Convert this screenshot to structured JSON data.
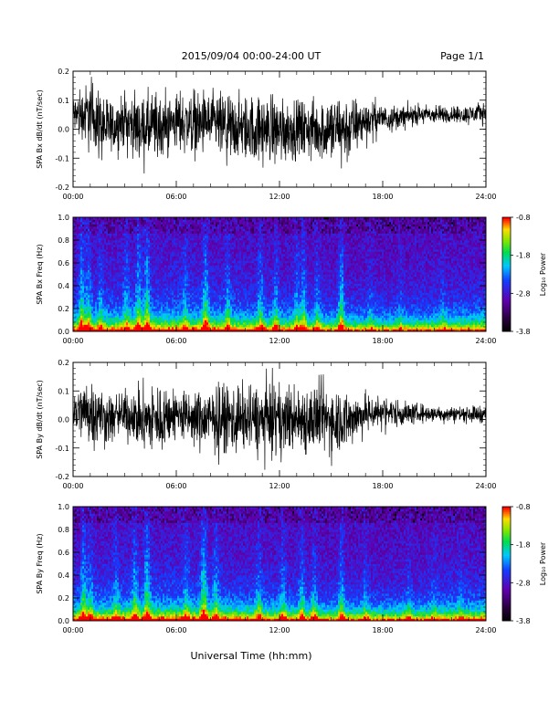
{
  "header": {
    "title": "2015/09/04  00:00-24:00 UT",
    "page": "Page 1/1"
  },
  "xaxis": {
    "label": "Universal Time (hh:mm)",
    "ticks": [
      "00:00",
      "06:00",
      "12:00",
      "18:00",
      "24:00"
    ]
  },
  "chart_data": [
    {
      "type": "line",
      "title": "",
      "xlabel": "",
      "ylabel": "SPA Bx dB/dt (nT/sec)",
      "xlim": [
        0,
        24
      ],
      "ylim": [
        -0.2,
        0.2
      ],
      "x_unit": "hours UT",
      "yticks": [
        "-0.2",
        "-0.1",
        "0.0",
        "0.1",
        "0.2"
      ],
      "color": "#000000",
      "envelope": {
        "x": [
          0,
          1,
          2,
          3,
          4,
          5,
          6,
          7,
          8,
          9,
          10,
          11,
          12,
          13,
          14,
          15,
          16,
          17,
          18,
          19,
          20,
          21,
          22,
          23,
          24
        ],
        "amplitude": [
          0.12,
          0.22,
          0.18,
          0.16,
          0.2,
          0.22,
          0.16,
          0.2,
          0.18,
          0.22,
          0.2,
          0.22,
          0.2,
          0.18,
          0.18,
          0.22,
          0.2,
          0.12,
          0.09,
          0.07,
          0.06,
          0.06,
          0.05,
          0.06,
          0.07
        ],
        "offset": [
          0.05,
          0.05,
          0.0,
          0.03,
          0.0,
          0.0,
          0.03,
          0.02,
          0.02,
          0.0,
          0.0,
          0.0,
          0.0,
          0.0,
          0.0,
          0.0,
          0.0,
          0.03,
          0.04,
          0.04,
          0.05,
          0.05,
          0.05,
          0.05,
          0.06
        ]
      }
    },
    {
      "type": "heatmap",
      "title": "",
      "xlabel": "",
      "ylabel": "SPA Bx Freq (Hz)",
      "xlim": [
        0,
        24
      ],
      "ylim": [
        0,
        1.0
      ],
      "yticks": [
        "0.0",
        "0.2",
        "0.4",
        "0.6",
        "0.8",
        "1.0"
      ],
      "colorbar": {
        "label": "Log₁₀ Power",
        "range": [
          -3.8,
          -0.8
        ],
        "ticks": [
          "-0.8",
          "-1.8",
          "-2.8",
          "-3.8"
        ]
      },
      "bursts": [
        {
          "t": 0.5,
          "a": 0.9
        },
        {
          "t": 0.9,
          "a": 0.7
        },
        {
          "t": 1.6,
          "a": 0.5
        },
        {
          "t": 3.1,
          "a": 0.6
        },
        {
          "t": 3.8,
          "a": 0.8
        },
        {
          "t": 4.3,
          "a": 0.9
        },
        {
          "t": 6.5,
          "a": 0.5
        },
        {
          "t": 7.7,
          "a": 0.9
        },
        {
          "t": 9.0,
          "a": 0.6
        },
        {
          "t": 10.9,
          "a": 0.7
        },
        {
          "t": 11.8,
          "a": 0.6
        },
        {
          "t": 13.0,
          "a": 0.7
        },
        {
          "t": 13.4,
          "a": 0.8
        },
        {
          "t": 14.2,
          "a": 0.6
        },
        {
          "t": 15.6,
          "a": 1.0
        },
        {
          "t": 17.3,
          "a": 0.5
        },
        {
          "t": 19.0,
          "a": 0.4
        },
        {
          "t": 21.5,
          "a": 0.4
        }
      ]
    },
    {
      "type": "line",
      "title": "",
      "xlabel": "",
      "ylabel": "SPA By dB/dt (nT/sec)",
      "xlim": [
        0,
        24
      ],
      "ylim": [
        -0.2,
        0.2
      ],
      "x_unit": "hours UT",
      "yticks": [
        "-0.2",
        "-0.1",
        "0.0",
        "0.1",
        "0.2"
      ],
      "color": "#000000",
      "envelope": {
        "x": [
          0,
          1,
          2,
          3,
          4,
          5,
          6,
          7,
          8,
          9,
          10,
          11,
          12,
          13,
          14,
          15,
          16,
          17,
          18,
          19,
          20,
          21,
          22,
          23,
          24
        ],
        "amplitude": [
          0.12,
          0.22,
          0.16,
          0.14,
          0.2,
          0.22,
          0.15,
          0.18,
          0.2,
          0.22,
          0.2,
          0.22,
          0.22,
          0.2,
          0.22,
          0.22,
          0.18,
          0.12,
          0.1,
          0.08,
          0.06,
          0.05,
          0.05,
          0.05,
          0.06
        ],
        "offset": [
          0.03,
          0.03,
          0.0,
          0.02,
          0.0,
          0.0,
          0.02,
          0.0,
          0.0,
          0.0,
          0.0,
          0.0,
          0.0,
          0.0,
          0.0,
          0.0,
          0.0,
          0.02,
          0.03,
          0.02,
          0.02,
          0.02,
          0.02,
          0.02,
          0.02
        ]
      }
    },
    {
      "type": "heatmap",
      "title": "",
      "xlabel": "Universal Time (hh:mm)",
      "ylabel": "SPA By Freq (Hz)",
      "xlim": [
        0,
        24
      ],
      "ylim": [
        0,
        1.0
      ],
      "yticks": [
        "0.0",
        "0.2",
        "0.4",
        "0.6",
        "0.8",
        "1.0"
      ],
      "colorbar": {
        "label": "Log₁₀ Power",
        "range": [
          -3.8,
          -0.8
        ],
        "ticks": [
          "-0.8",
          "-1.8",
          "-2.8",
          "-3.8"
        ]
      },
      "bursts": [
        {
          "t": 0.6,
          "a": 0.9
        },
        {
          "t": 1.0,
          "a": 0.6
        },
        {
          "t": 2.5,
          "a": 0.5
        },
        {
          "t": 3.6,
          "a": 0.7
        },
        {
          "t": 4.3,
          "a": 0.9
        },
        {
          "t": 6.6,
          "a": 0.5
        },
        {
          "t": 7.6,
          "a": 1.0
        },
        {
          "t": 8.3,
          "a": 0.6
        },
        {
          "t": 10.8,
          "a": 0.6
        },
        {
          "t": 12.2,
          "a": 0.6
        },
        {
          "t": 13.3,
          "a": 0.7
        },
        {
          "t": 14.0,
          "a": 0.6
        },
        {
          "t": 15.6,
          "a": 0.8
        },
        {
          "t": 17.0,
          "a": 0.5
        },
        {
          "t": 19.5,
          "a": 0.4
        },
        {
          "t": 21.0,
          "a": 0.4
        },
        {
          "t": 22.5,
          "a": 0.3
        }
      ]
    }
  ]
}
